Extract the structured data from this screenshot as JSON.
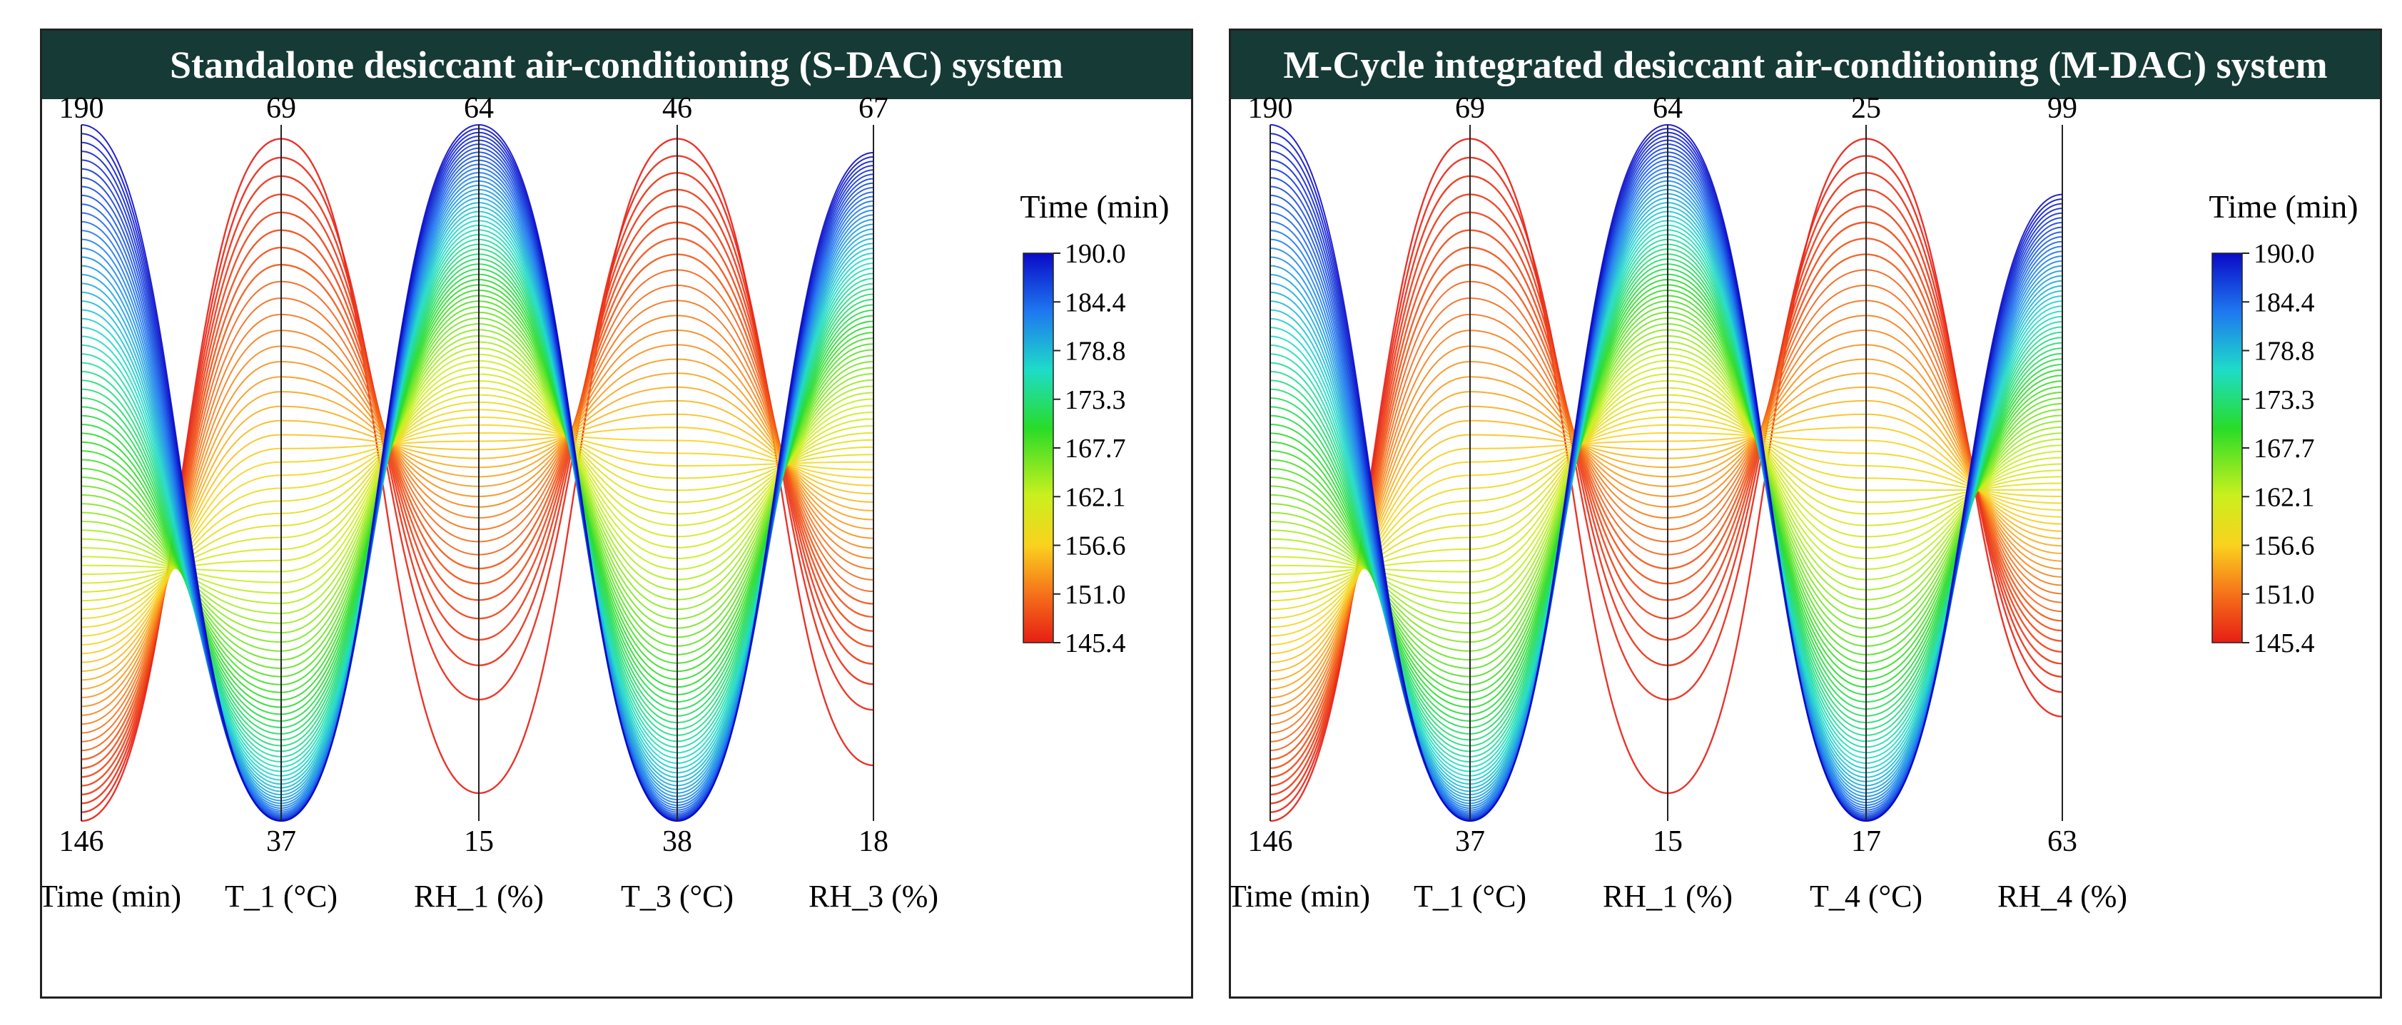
{
  "chart_data": [
    {
      "type": "parallel-coordinates",
      "title": "Standalone desiccant air-conditioning (S-DAC) system",
      "color_variable": "Time (min)",
      "colorbar": {
        "label": "Time (min)",
        "range": [
          145.4,
          190.0
        ],
        "ticks": [
          "190.0",
          "184.4",
          "178.8",
          "173.3",
          "167.7",
          "162.1",
          "156.6",
          "151.0",
          "145.4"
        ]
      },
      "axes": [
        {
          "label": "Time (min)",
          "max": "190",
          "min": "146"
        },
        {
          "label": "T_1 (°C)",
          "max": "69",
          "min": "37"
        },
        {
          "label": "RH_1 (%)",
          "max": "64",
          "min": "15"
        },
        {
          "label": "T_3 (°C)",
          "max": "46",
          "min": "38"
        },
        {
          "label": "RH_3 (%)",
          "max": "67",
          "min": "18"
        }
      ],
      "series_count": 80,
      "time_range": [
        145.4,
        190.0
      ]
    },
    {
      "type": "parallel-coordinates",
      "title": "M-Cycle integrated desiccant air-conditioning (M-DAC) system",
      "color_variable": "Time (min)",
      "colorbar": {
        "label": "Time (min)",
        "range": [
          145.4,
          190.0
        ],
        "ticks": [
          "190.0",
          "184.4",
          "178.8",
          "173.3",
          "167.7",
          "162.1",
          "156.6",
          "151.0",
          "145.4"
        ]
      },
      "axes": [
        {
          "label": "Time (min)",
          "max": "190",
          "min": "146"
        },
        {
          "label": "T_1 (°C)",
          "max": "69",
          "min": "37"
        },
        {
          "label": "RH_1 (%)",
          "max": "64",
          "min": "15"
        },
        {
          "label": "T_4 (°C)",
          "max": "25",
          "min": "17"
        },
        {
          "label": "RH_4 (%)",
          "max": "99",
          "min": "63"
        }
      ],
      "series_count": 80,
      "time_range": [
        145.4,
        190.0
      ]
    }
  ]
}
